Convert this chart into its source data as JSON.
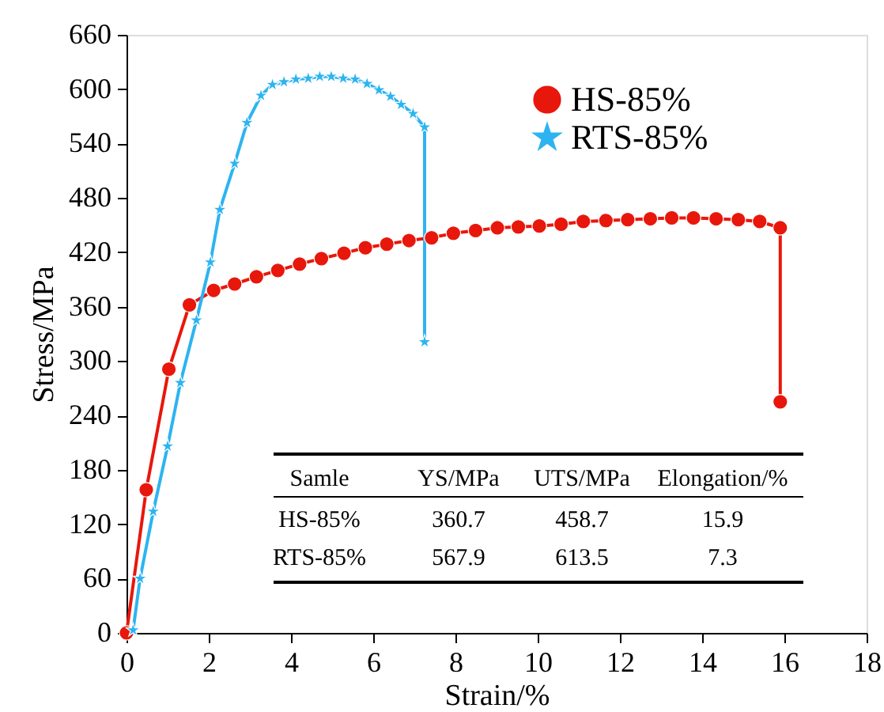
{
  "chart_data": {
    "type": "line",
    "xlabel": "Strain/%",
    "ylabel": "Stress/MPa",
    "xlim": [
      0,
      18
    ],
    "xticks": [
      0,
      2,
      4,
      6,
      8,
      10,
      12,
      14,
      16,
      18
    ],
    "ylim": [
      0,
      660
    ],
    "yticks": [
      0,
      60,
      120,
      180,
      240,
      300,
      360,
      420,
      480,
      540,
      600,
      660
    ],
    "grid": false,
    "legend": "top right",
    "series": [
      {
        "name": "HS-85%",
        "color": "#e8170c",
        "marker": "circle",
        "x": [
          0,
          0.48,
          1.03,
          1.53,
          2.12,
          2.63,
          3.16,
          3.68,
          4.21,
          4.74,
          5.29,
          5.81,
          6.33,
          6.87,
          7.42,
          7.95,
          8.49,
          9.02,
          9.53,
          10.04,
          10.57,
          11.11,
          11.66,
          12.19,
          12.74,
          13.26,
          13.79,
          14.34,
          14.88,
          15.4,
          15.9,
          15.9
        ],
        "values": [
          0,
          158,
          291,
          362,
          378,
          385,
          393,
          400,
          407,
          413,
          419,
          425,
          429,
          433,
          436,
          441,
          444,
          447,
          448,
          449,
          451,
          454,
          455,
          456,
          457,
          458,
          458,
          457,
          456,
          454,
          447,
          255
        ]
      },
      {
        "name": "RTS-85%",
        "color": "#2db4f0",
        "marker": "star",
        "x": [
          0.16,
          0.33,
          0.65,
          1.0,
          1.31,
          1.7,
          2.04,
          2.27,
          2.63,
          2.93,
          3.27,
          3.55,
          3.83,
          4.12,
          4.42,
          4.7,
          4.98,
          5.27,
          5.56,
          5.85,
          6.14,
          6.42,
          6.68,
          6.97,
          7.25,
          7.25
        ],
        "values": [
          3,
          60,
          134,
          206,
          276,
          345,
          409,
          467,
          518,
          563,
          593,
          605,
          608,
          611,
          612,
          614,
          614,
          612,
          611,
          606,
          599,
          592,
          583,
          573,
          558,
          321
        ]
      }
    ],
    "annotations": [
      "Samle",
      "YS/MPa",
      "UTS/MPa",
      "Elongation/%",
      "HS-85%",
      "360.7",
      "458.7",
      "15.9",
      "RTS-85%",
      "567.9",
      "613.5",
      "7.3"
    ]
  }
}
